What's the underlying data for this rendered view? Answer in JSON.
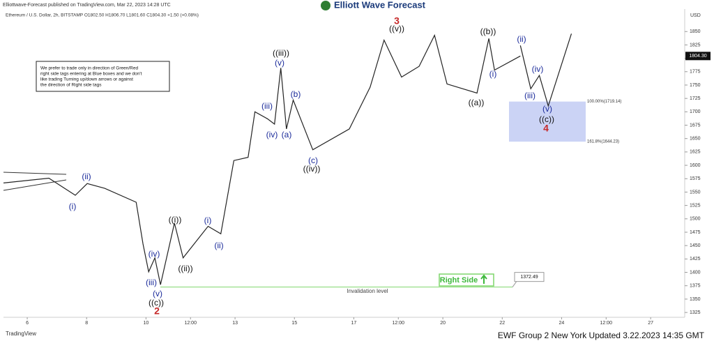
{
  "header": {
    "publisher": "Elliottwave-Forecast published on TradingView.com, Mar 22, 2023 14:28 UTC",
    "brand": "Elliott Wave Forecast",
    "symbol": "Ethereum / U.S. Dollar, 2h, BITSTAMP  O1802.50 H1806.70 L1801.60 C1804.30 +1.50 (+0.08%)"
  },
  "note": {
    "lines": [
      "We prefer to trade only in direction of Green/Red",
      "right side tags entering at Blue boxes and we don't",
      "like trading Turning up/down arrows or against",
      "the direction of Right side tags"
    ]
  },
  "chart_data": {
    "type": "line",
    "y_axis_label": "USD",
    "color": "#222222",
    "x": [
      5.2,
      6.73,
      7.62,
      8.02,
      8.61,
      9.67,
      9.9,
      10.09,
      10.3,
      10.49,
      10.96,
      11.25,
      12.09,
      12.52,
      12.96,
      13.44,
      13.67,
      14.09,
      14.33,
      14.54,
      14.73,
      14.96,
      15.62,
      16.85,
      17.55,
      18.02,
      18.61,
      19.2,
      19.72,
      20.14,
      21.15,
      21.55,
      21.74,
      22.61
    ],
    "values": [
      1567,
      1576,
      1544,
      1566,
      1557,
      1531,
      1453,
      1401,
      1427,
      1377,
      1492,
      1427,
      1486,
      1472,
      1609,
      1615,
      1700,
      1687,
      1677,
      1782,
      1668,
      1722,
      1629,
      1668,
      1746,
      1834,
      1765,
      1785,
      1843,
      1752,
      1735,
      1837,
      1778,
      1804.3
    ],
    "projection": {
      "color": "#222222",
      "x": [
        22.61,
        22.96,
        23.25,
        23.55,
        24.33
      ],
      "values": [
        1824,
        1743,
        1768,
        1711,
        1846
      ]
    },
    "last_price": {
      "value": 1804.3,
      "label": "1804.30"
    },
    "xlim": [
      5.2,
      28.1
    ],
    "ylim": [
      1316,
      1892
    ],
    "xticks": [
      6,
      8,
      10,
      {
        "value": 11.5,
        "label": "12:00"
      },
      13,
      15,
      17,
      {
        "value": 18.5,
        "label": "12:00"
      },
      20,
      22,
      24,
      {
        "value": 25.5,
        "label": "12:00"
      },
      27
    ],
    "yticks": [
      1325,
      1350,
      1375,
      1400,
      1425,
      1450,
      1475,
      1500,
      1525,
      1550,
      1575,
      1600,
      1625,
      1650,
      1675,
      1700,
      1725,
      1750,
      1775,
      1800,
      1825,
      1850
    ],
    "target_box": {
      "color": "#b9c4f2",
      "levels": [
        {
          "value": 1719.14,
          "label": "100.00%(1719.14)"
        },
        {
          "value": 1644.23,
          "label": "161.8%(1644.23)"
        }
      ]
    },
    "invalidation": {
      "value": 1372.49,
      "label": "1372.49",
      "text": "Invalidation level",
      "color": "#7fd66b"
    },
    "right_side": "Right Side",
    "wave_labels": [
      {
        "text": "(i)",
        "color": "#1a2a9a"
      },
      {
        "text": "(ii)",
        "color": "#1a2a9a"
      },
      {
        "text": "((i))",
        "color": "#111111"
      },
      {
        "text": "((ii))",
        "color": "#111111"
      },
      {
        "text": "(i)",
        "color": "#1a2a9a"
      },
      {
        "text": "(ii)",
        "color": "#1a2a9a"
      },
      {
        "text": "(iv)",
        "color": "#1a2a9a"
      },
      {
        "text": "(iii)",
        "color": "#1a2a9a"
      },
      {
        "text": "(v)",
        "color": "#1a2a9a"
      },
      {
        "text": "((c))",
        "color": "#111111"
      },
      {
        "text": "2",
        "color": "#c62828"
      },
      {
        "text": "(iii)",
        "color": "#1a2a9a"
      },
      {
        "text": "(iv)",
        "color": "#1a2a9a"
      },
      {
        "text": "((iii))",
        "color": "#111111"
      },
      {
        "text": "(v)",
        "color": "#1a2a9a"
      },
      {
        "text": "(b)",
        "color": "#1a2a9a"
      },
      {
        "text": "(a)",
        "color": "#1a2a9a"
      },
      {
        "text": "(c)",
        "color": "#1a2a9a"
      },
      {
        "text": "((iv))",
        "color": "#111111"
      },
      {
        "text": "3",
        "color": "#c62828"
      },
      {
        "text": "((v))",
        "color": "#111111"
      },
      {
        "text": "((b))",
        "color": "#111111"
      },
      {
        "text": "(i)",
        "color": "#1a2a9a"
      },
      {
        "text": "((a))",
        "color": "#111111"
      },
      {
        "text": "(ii)",
        "color": "#1a2a9a"
      },
      {
        "text": "(iv)",
        "color": "#1a2a9a"
      },
      {
        "text": "(iii)",
        "color": "#1a2a9a"
      },
      {
        "text": "(v)",
        "color": "#1a2a9a"
      },
      {
        "text": "((c))",
        "color": "#111111"
      },
      {
        "text": "4",
        "color": "#c62828"
      }
    ]
  },
  "footer": {
    "logo": "TradingView",
    "updated": "EWF Group 2 New York Updated 3.22.2023 14:35 GMT"
  }
}
